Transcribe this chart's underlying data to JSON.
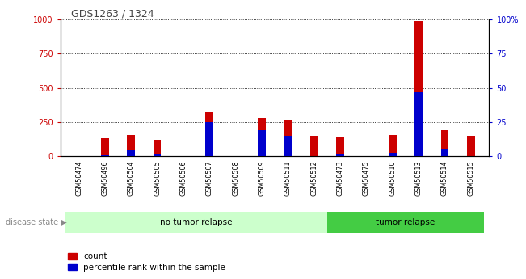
{
  "title": "GDS1263 / 1324",
  "samples": [
    "GSM50474",
    "GSM50496",
    "GSM50504",
    "GSM50505",
    "GSM50506",
    "GSM50507",
    "GSM50508",
    "GSM50509",
    "GSM50511",
    "GSM50512",
    "GSM50473",
    "GSM50475",
    "GSM50510",
    "GSM50513",
    "GSM50514",
    "GSM50515"
  ],
  "count": [
    0,
    130,
    155,
    120,
    0,
    320,
    0,
    280,
    270,
    150,
    145,
    0,
    155,
    990,
    190,
    150
  ],
  "percentile_right": [
    0,
    1,
    4,
    1.5,
    0,
    25,
    0,
    19,
    15,
    0,
    1.5,
    0,
    2.5,
    47,
    5.5,
    0
  ],
  "no_tumor_count": 10,
  "tumor_count": 6,
  "group1_label": "no tumor relapse",
  "group2_label": "tumor relapse",
  "disease_state_label": "disease state",
  "legend_count": "count",
  "legend_pct": "percentile rank within the sample",
  "ylim_left": [
    0,
    1000
  ],
  "ylim_right": [
    0,
    100
  ],
  "yticks_left": [
    0,
    250,
    500,
    750,
    1000
  ],
  "yticks_right": [
    0,
    25,
    50,
    75,
    100
  ],
  "ytick_left_labels": [
    "0",
    "250",
    "500",
    "750",
    "1000"
  ],
  "ytick_right_labels": [
    "0",
    "25",
    "50",
    "75",
    "100%"
  ],
  "bar_color_count": "#cc0000",
  "bar_color_pct": "#0000cc",
  "group_bg_light": "#ccffcc",
  "group_bg_medium": "#44cc44",
  "tick_label_bg": "#cccccc",
  "title_color": "#444444"
}
